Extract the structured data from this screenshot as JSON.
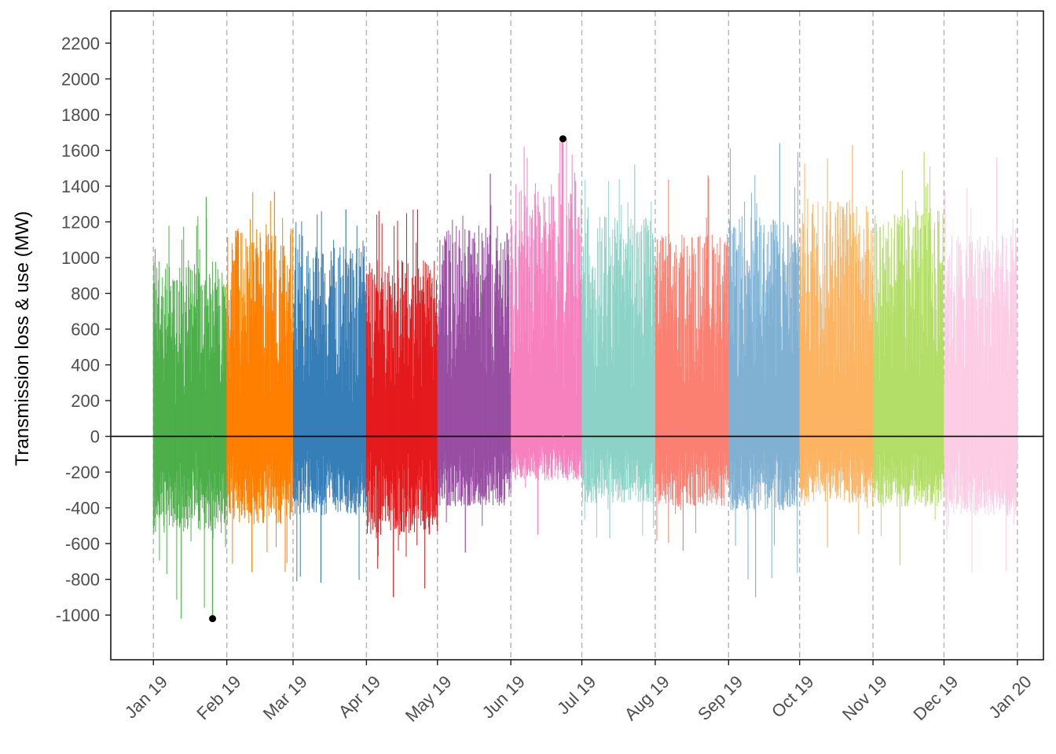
{
  "chart_data": {
    "type": "bar",
    "ylabel": "Transmission loss & use (MW)",
    "xlabel": "",
    "ylim": [
      -1250,
      2380
    ],
    "yticks": [
      -1000,
      -800,
      -600,
      -400,
      -200,
      0,
      200,
      400,
      600,
      800,
      1000,
      1200,
      1400,
      1600,
      1800,
      2000,
      2200
    ],
    "x_start": "2019-01-01",
    "x_end": "2020-01-01",
    "xlim": [
      "2018-12-14",
      "2020-01-12"
    ],
    "xticks": [
      {
        "date": "2019-01-01",
        "label": "Jan 19"
      },
      {
        "date": "2019-02-01",
        "label": "Feb 19"
      },
      {
        "date": "2019-03-01",
        "label": "Mar 19"
      },
      {
        "date": "2019-04-01",
        "label": "Apr 19"
      },
      {
        "date": "2019-05-01",
        "label": "May 19"
      },
      {
        "date": "2019-06-01",
        "label": "Jun 19"
      },
      {
        "date": "2019-07-01",
        "label": "Jul 19"
      },
      {
        "date": "2019-08-01",
        "label": "Aug 19"
      },
      {
        "date": "2019-09-01",
        "label": "Sep 19"
      },
      {
        "date": "2019-10-01",
        "label": "Oct 19"
      },
      {
        "date": "2019-11-01",
        "label": "Nov 19"
      },
      {
        "date": "2019-12-01",
        "label": "Dec 19"
      },
      {
        "date": "2020-01-01",
        "label": "Jan 20"
      }
    ],
    "grid": {
      "vertical": true,
      "horizontal": false,
      "style": "dashed"
    },
    "zero_line": true,
    "months": [
      {
        "month": "2019-01",
        "color": "#4daf4a",
        "max": 1340,
        "min": -1020,
        "typ_high": 1000,
        "typ_low": -550
      },
      {
        "month": "2019-02",
        "color": "#ff7f00",
        "max": 1370,
        "min": -760,
        "typ_high": 1180,
        "typ_low": -500
      },
      {
        "month": "2019-03",
        "color": "#377eb8",
        "max": 1270,
        "min": -820,
        "typ_high": 1080,
        "typ_low": -450
      },
      {
        "month": "2019-04",
        "color": "#e41a1c",
        "max": 1270,
        "min": -900,
        "typ_high": 1000,
        "typ_low": -560
      },
      {
        "month": "2019-05",
        "color": "#984ea3",
        "max": 1470,
        "min": -650,
        "typ_high": 1200,
        "typ_low": -400
      },
      {
        "month": "2019-06",
        "color": "#f781bf",
        "max": 1665,
        "min": -550,
        "typ_high": 1400,
        "typ_low": -250
      },
      {
        "month": "2019-07",
        "color": "#8dd3c7",
        "max": 1520,
        "min": -570,
        "typ_high": 1250,
        "typ_low": -380
      },
      {
        "month": "2019-08",
        "color": "#fb8072",
        "max": 1460,
        "min": -640,
        "typ_high": 1150,
        "typ_low": -400
      },
      {
        "month": "2019-09",
        "color": "#80b1d3",
        "max": 1640,
        "min": -900,
        "typ_high": 1250,
        "typ_low": -420
      },
      {
        "month": "2019-10",
        "color": "#fdb462",
        "max": 1630,
        "min": -620,
        "typ_high": 1350,
        "typ_low": -380
      },
      {
        "month": "2019-11",
        "color": "#b3de69",
        "max": 1590,
        "min": -720,
        "typ_high": 1300,
        "typ_low": -400
      },
      {
        "month": "2019-12",
        "color": "#fccde5",
        "max": 1560,
        "min": -760,
        "typ_high": 1150,
        "typ_low": -450
      }
    ],
    "extremes": [
      {
        "date": "2019-01-26",
        "value": -1020,
        "kind": "min"
      },
      {
        "date": "2019-06-23",
        "value": 1665,
        "kind": "max"
      }
    ]
  }
}
